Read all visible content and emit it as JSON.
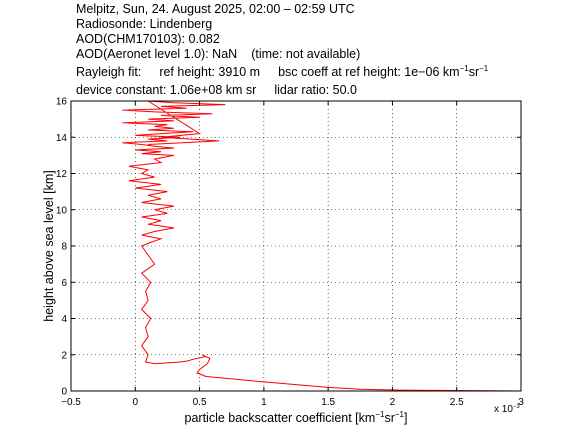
{
  "header": {
    "line1": "Melpitz, Sun, 24. August 2025, 02:00 – 02:59 UTC",
    "line2": "Radiosonde: Lindenberg",
    "line3": "AOD(CHM170103): 0.082",
    "line4_main": "AOD(Aeronet level 1.0): NaN",
    "line4_time": "(time: not available)",
    "rayleigh_label": "Rayleigh fit:",
    "ref_height": "ref height: 3910 m",
    "bsc_coeff_prefix": "bsc coeff at ref height: 1e−06 km",
    "bsc_coeff_exp1": "−1",
    "bsc_coeff_mid": "sr",
    "bsc_coeff_exp2": "−1",
    "device_constant": "device constant: 1.06e+08 km sr",
    "lidar_ratio": "lidar ratio: 50.0"
  },
  "chart_data": {
    "type": "line",
    "xlabel_prefix": "particle backscatter coefficient [km",
    "xlabel_exp1": "−1",
    "xlabel_mid": "sr",
    "xlabel_exp2": "−1",
    "xlabel_suffix": "]",
    "ylabel": "height above sea level [km]",
    "x_multiplier": "x 10",
    "x_multiplier_exp": "−3",
    "xlim": [
      -0.5,
      3.0
    ],
    "ylim": [
      0,
      16
    ],
    "xticks": [
      -0.5,
      0,
      0.5,
      1,
      1.5,
      2,
      2.5,
      3
    ],
    "xtick_labels": [
      "−0.5",
      "0",
      "0.5",
      "1",
      "1.5",
      "2",
      "2.5",
      "3"
    ],
    "yticks": [
      0,
      2,
      4,
      6,
      8,
      10,
      12,
      14,
      16
    ],
    "ytick_labels": [
      "0",
      "2",
      "4",
      "6",
      "8",
      "10",
      "12",
      "14",
      "16"
    ],
    "grid": true,
    "line_color": "#ff0000",
    "series": [
      {
        "x": [
          3.0,
          2.05,
          1.75,
          1.5,
          1.0,
          0.7,
          0.55,
          0.48,
          0.5,
          0.56,
          0.58,
          0.52,
          0.55,
          0.45,
          0.4,
          0.35,
          0.25,
          0.15,
          0.08,
          0.1,
          0.05,
          0.1,
          0.08,
          0.12,
          0.05,
          0.1,
          0.08,
          0.12,
          0.05,
          0.15,
          0.1,
          0.05,
          0.12,
          0.2,
          0.05,
          0.15,
          0.3,
          0.1,
          0.2,
          0.05,
          0.25,
          0.15,
          0.3,
          0.05,
          0.2,
          0.1,
          0.25,
          0.0,
          0.2,
          -0.05,
          0.15,
          0.05,
          0.1,
          -0.05,
          0.2,
          0.15,
          0.3,
          0.05,
          0.2,
          0.0,
          0.3,
          0.15,
          0.05,
          -0.1,
          0.25,
          0.1,
          0.35,
          0.0,
          0.2,
          0.45,
          0.1,
          0.3,
          0.15,
          0.25,
          -0.1,
          0.3,
          0.1,
          0.5,
          0.2,
          0.6,
          0.15,
          -0.1,
          0.4,
          0.2,
          0.7,
          0.3,
          0.1,
          0.5,
          0.2,
          0.65,
          0.1
        ],
        "y": [
          0.0,
          0.05,
          0.1,
          0.2,
          0.5,
          0.7,
          0.8,
          1.0,
          1.2,
          1.5,
          1.8,
          2.0,
          1.9,
          1.75,
          1.65,
          1.6,
          1.55,
          1.5,
          1.6,
          2.0,
          2.5,
          3.0,
          3.5,
          4.0,
          4.5,
          5.0,
          5.5,
          6.0,
          6.5,
          7.0,
          7.5,
          8.0,
          8.2,
          8.4,
          8.6,
          8.8,
          9.0,
          9.2,
          9.4,
          9.6,
          9.8,
          10.0,
          10.2,
          10.4,
          10.6,
          10.8,
          11.0,
          11.2,
          11.4,
          11.6,
          11.8,
          12.0,
          12.2,
          12.4,
          12.6,
          12.8,
          13.0,
          13.1,
          13.2,
          13.3,
          13.4,
          13.5,
          13.6,
          13.7,
          13.8,
          13.9,
          14.0,
          14.1,
          14.2,
          14.3,
          14.4,
          14.5,
          14.6,
          14.7,
          14.8,
          14.9,
          15.0,
          15.1,
          15.2,
          15.3,
          15.4,
          15.5,
          15.6,
          15.7,
          15.8,
          15.9,
          16.0,
          14.2,
          14.0,
          13.8,
          13.6
        ]
      }
    ]
  }
}
